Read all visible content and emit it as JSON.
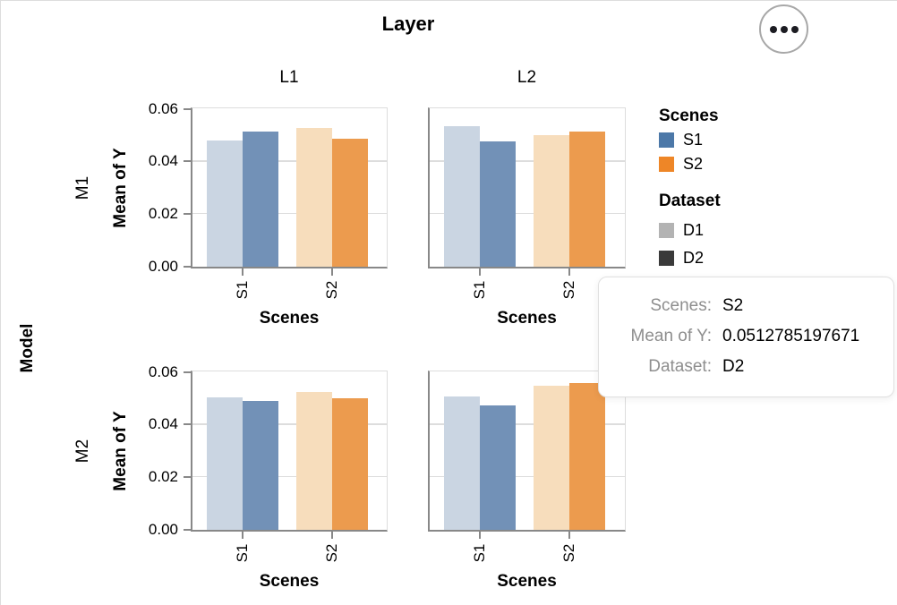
{
  "header": {
    "title": "Layer",
    "menu_icon": "ellipsis"
  },
  "chart_data": {
    "type": "bar",
    "title": "Layer",
    "row_title": "Model",
    "column_headers": [
      "L1",
      "L2"
    ],
    "row_headers": [
      "M1",
      "M2"
    ],
    "xlabel": "Scenes",
    "ylabel": "Mean of Y",
    "x_categories": [
      "S1",
      "S2"
    ],
    "group_field": "Dataset",
    "groups": [
      "D1",
      "D2"
    ],
    "ylim": [
      0,
      0.06
    ],
    "ytick_values": [
      0,
      0.02,
      0.04,
      0.06
    ],
    "ytick_labels": [
      "0.00",
      "0.02",
      "0.04",
      "0.06"
    ],
    "grid": true,
    "legend_position": "right",
    "bar_colors": {
      "S1": [
        "#cad5e2",
        "#7291b7"
      ],
      "S2": [
        "#f7ddbc",
        "#ec9b4e"
      ]
    },
    "facets": [
      {
        "row": "M1",
        "col": "L1",
        "values": {
          "S1": [
            0.0478,
            0.0514
          ],
          "S2": [
            0.0527,
            0.0486
          ]
        }
      },
      {
        "row": "M1",
        "col": "L2",
        "values": {
          "S1": [
            0.0533,
            0.0477
          ],
          "S2": [
            0.0499,
            0.0512785197671
          ]
        }
      },
      {
        "row": "M2",
        "col": "L1",
        "values": {
          "S1": [
            0.0502,
            0.0488
          ],
          "S2": [
            0.0525,
            0.0501
          ]
        }
      },
      {
        "row": "M2",
        "col": "L2",
        "values": {
          "S1": [
            0.0508,
            0.0472
          ],
          "S2": [
            0.0546,
            0.0558
          ]
        }
      }
    ]
  },
  "legend": {
    "scenes": {
      "title": "Scenes",
      "items": [
        {
          "label": "S1",
          "color": "#4c78a8"
        },
        {
          "label": "S2",
          "color": "#ee8627"
        }
      ]
    },
    "dataset": {
      "title": "Dataset",
      "items": [
        {
          "label": "D1",
          "color": "#b3b3b3"
        },
        {
          "label": "D2",
          "color": "#3a3a3a"
        }
      ]
    }
  },
  "tooltip": {
    "rows": [
      {
        "key": "Scenes:",
        "value": "S2"
      },
      {
        "key": "Mean of Y:",
        "value": "0.0512785197671"
      },
      {
        "key": "Dataset:",
        "value": "D2"
      }
    ]
  }
}
